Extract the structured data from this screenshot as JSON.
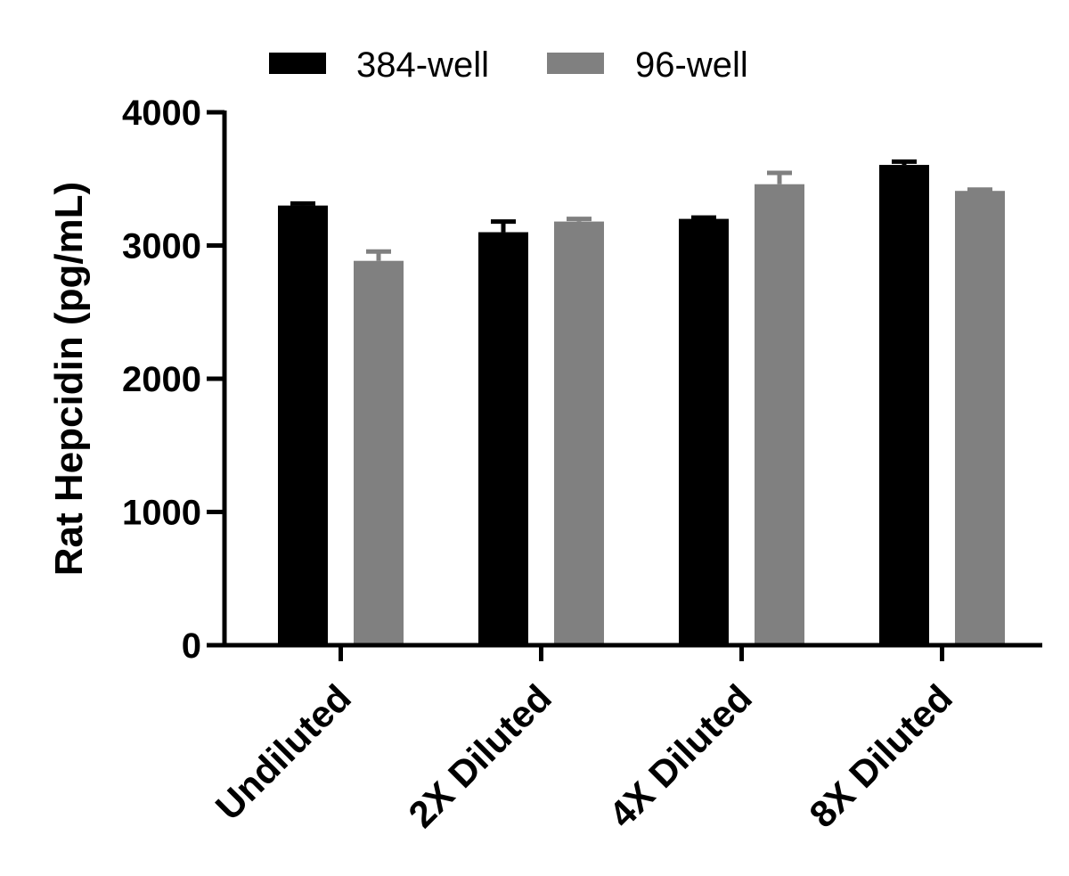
{
  "chart_data": {
    "type": "bar",
    "title": "",
    "xlabel": "",
    "ylabel": "Rat Hepcidin (pg/mL)",
    "categories": [
      "Undiluted",
      "2X Diluted",
      "4X Diluted",
      "8X Diluted"
    ],
    "series": [
      {
        "name": "384-well",
        "color": "#000000",
        "values": [
          3300,
          3100,
          3200,
          3605
        ],
        "errors": [
          15,
          80,
          10,
          25
        ]
      },
      {
        "name": "96-well",
        "color": "#808080",
        "values": [
          2885,
          3180,
          3460,
          3410
        ],
        "errors": [
          70,
          20,
          85,
          10
        ]
      }
    ],
    "ylim": [
      0,
      4000
    ],
    "yticks": [
      0,
      1000,
      2000,
      3000,
      4000
    ],
    "grid": false,
    "legend_position": "top"
  }
}
